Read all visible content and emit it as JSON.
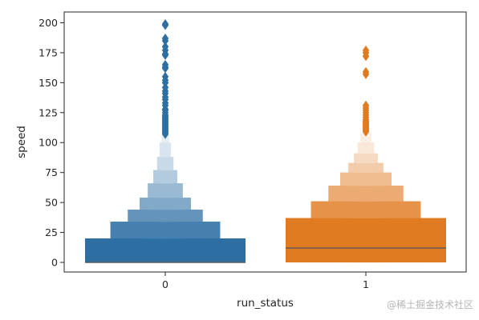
{
  "chart_data": {
    "type": "boxen",
    "xlabel": "run_status",
    "ylabel": "speed",
    "categories": [
      "0",
      "1"
    ],
    "ylim": [
      -8,
      209
    ],
    "yticks": [
      0,
      25,
      50,
      75,
      100,
      125,
      150,
      175,
      200
    ],
    "grid": false,
    "legend": "none",
    "series": [
      {
        "category": "0",
        "color": "#2d6fa3",
        "median": 0,
        "boxes": [
          {
            "low": 0,
            "high": 20,
            "shade": 1.0
          },
          {
            "low": 0,
            "high": 34,
            "shade": 0.88
          },
          {
            "low": 0,
            "high": 44,
            "shade": 0.74
          },
          {
            "low": 0,
            "high": 54,
            "shade": 0.6
          },
          {
            "low": 0,
            "high": 66,
            "shade": 0.48
          },
          {
            "low": 0,
            "high": 77,
            "shade": 0.36
          },
          {
            "low": 0,
            "high": 88,
            "shade": 0.26
          },
          {
            "low": 0,
            "high": 100,
            "shade": 0.18
          },
          {
            "low": 0,
            "high": 106,
            "shade": 0.12
          }
        ],
        "outliers": [
          199,
          198,
          187,
          185,
          180,
          177,
          174,
          173,
          165,
          163,
          162,
          155,
          152,
          150,
          146,
          143,
          141,
          138,
          136,
          133,
          131,
          128,
          127,
          125,
          123,
          122,
          121,
          120,
          119,
          118,
          117,
          116,
          115,
          114,
          113,
          112,
          111,
          110,
          109,
          108,
          107
        ]
      },
      {
        "category": "1",
        "color": "#e07b22",
        "median": 12,
        "boxes": [
          {
            "low": 0,
            "high": 37,
            "shade": 1.0
          },
          {
            "low": 0,
            "high": 51,
            "shade": 0.82
          },
          {
            "low": 0,
            "high": 64,
            "shade": 0.64
          },
          {
            "low": 0,
            "high": 75,
            "shade": 0.5
          },
          {
            "low": 0,
            "high": 83,
            "shade": 0.38
          },
          {
            "low": 0,
            "high": 91,
            "shade": 0.28
          },
          {
            "low": 0,
            "high": 100,
            "shade": 0.18
          },
          {
            "low": 0,
            "high": 108,
            "shade": 0.12
          }
        ],
        "outliers": [
          177,
          175,
          172,
          159,
          157,
          131,
          129,
          127,
          125,
          123,
          121,
          119,
          118,
          117,
          116,
          115,
          114,
          113,
          112,
          111,
          110,
          109
        ]
      }
    ]
  },
  "watermark": "@稀土掘金技术社区"
}
